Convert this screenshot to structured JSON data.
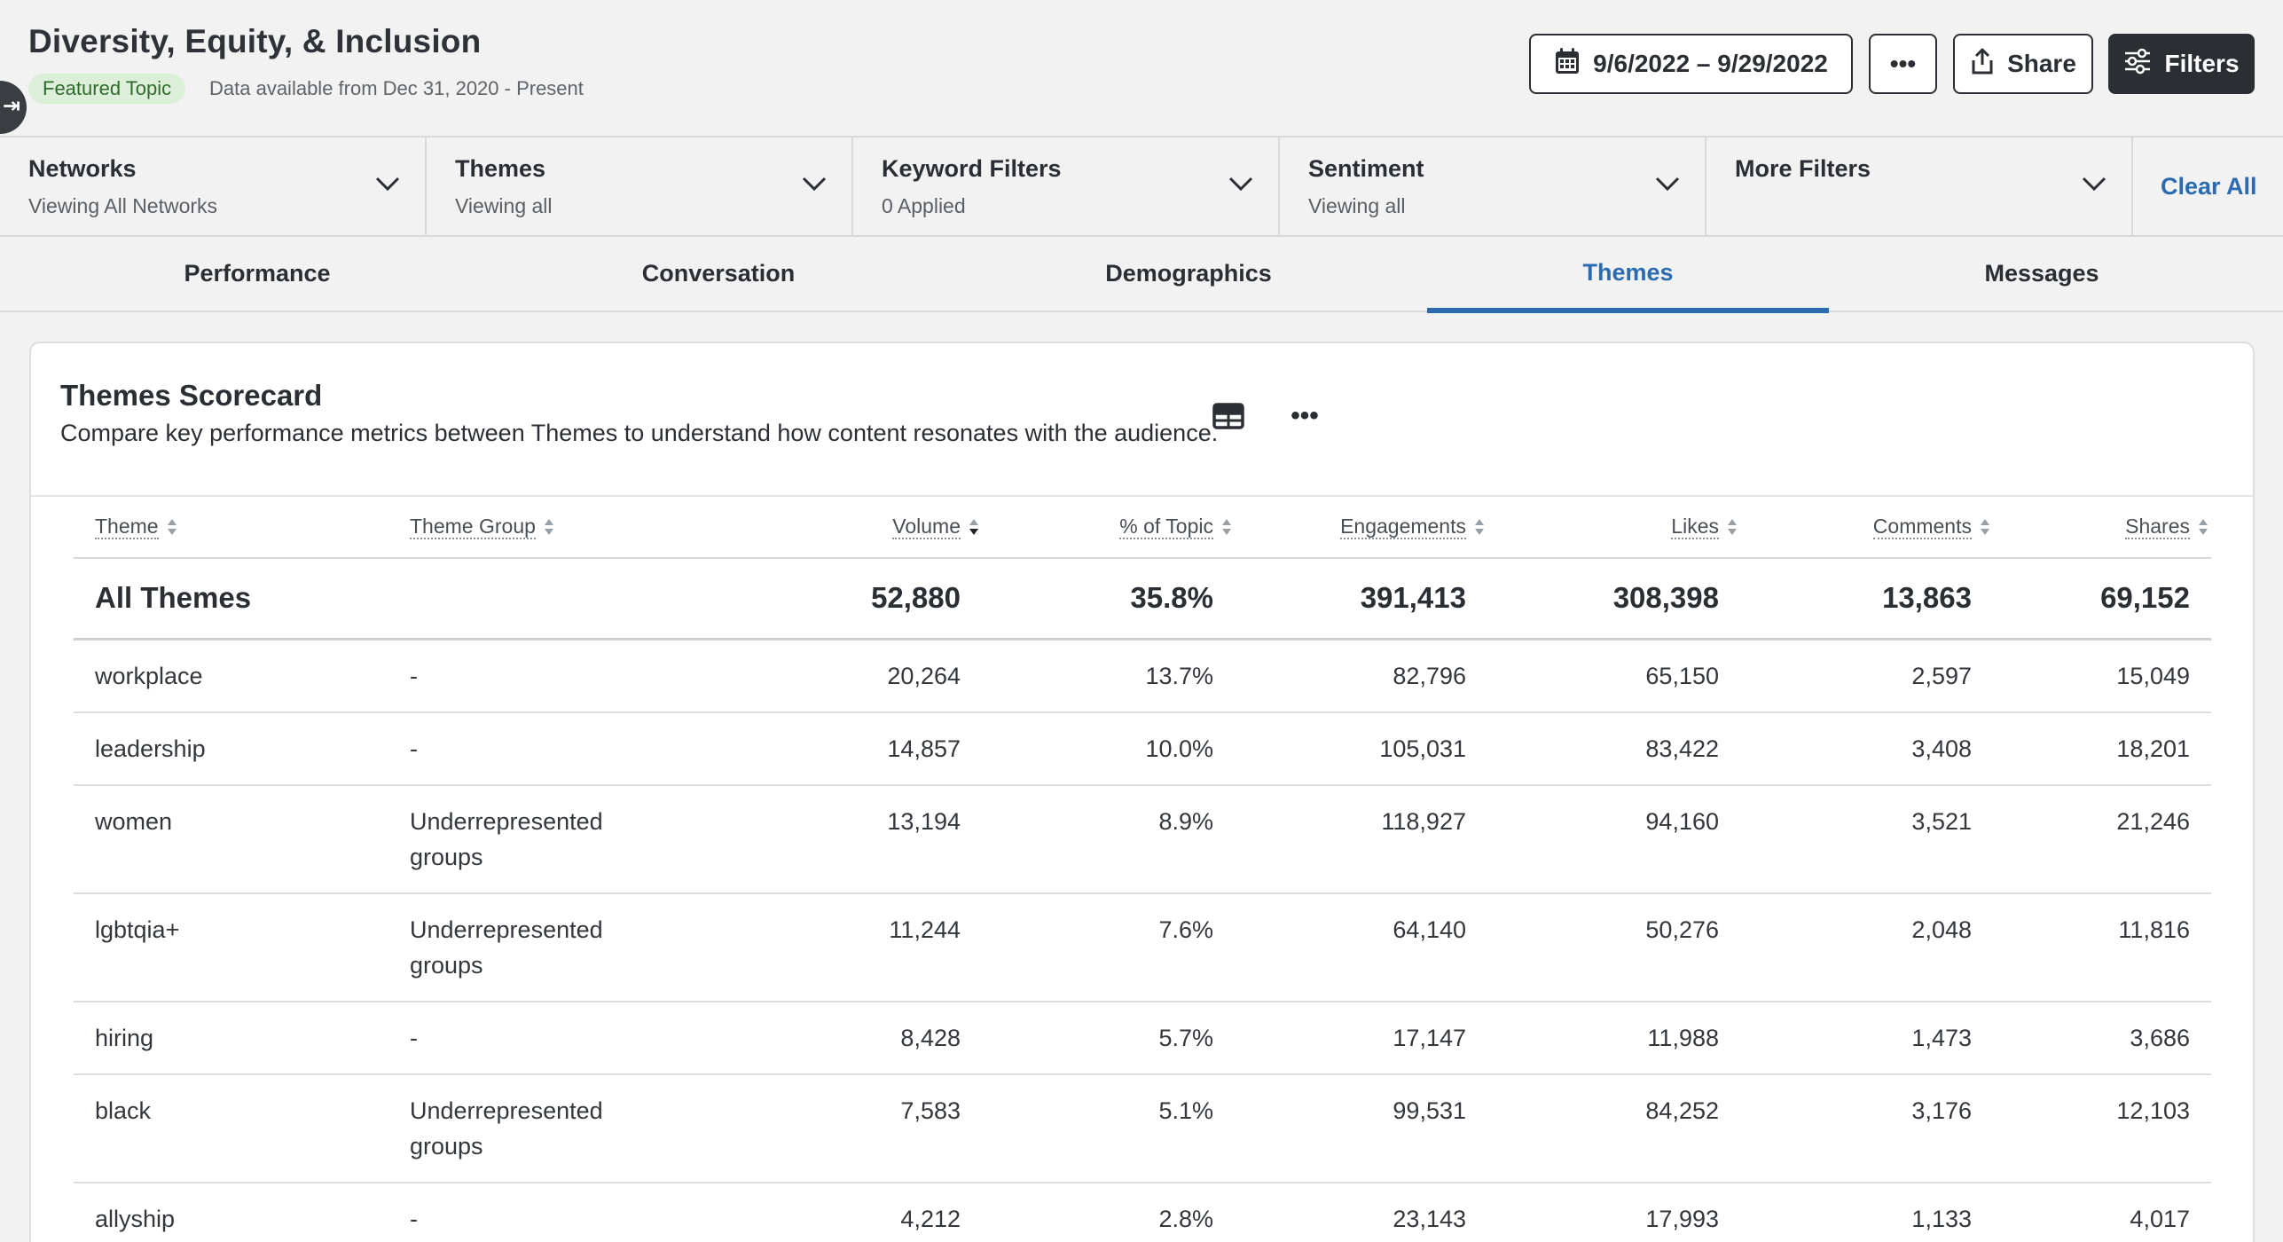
{
  "header": {
    "title": "Diversity, Equity, & Inclusion",
    "badge": "Featured Topic",
    "data_available": "Data available from Dec 31, 2020 - Present",
    "date_range": "9/6/2022 – 9/29/2022",
    "more_label": "•••",
    "share_label": "Share",
    "filters_label": "Filters"
  },
  "filters": [
    {
      "title": "Networks",
      "subtitle": "Viewing All Networks"
    },
    {
      "title": "Themes",
      "subtitle": "Viewing all"
    },
    {
      "title": "Keyword Filters",
      "subtitle": "0 Applied"
    },
    {
      "title": "Sentiment",
      "subtitle": "Viewing all"
    },
    {
      "title": "More Filters",
      "subtitle": ""
    }
  ],
  "clear_all": "Clear All",
  "tabs": [
    {
      "label": "Performance"
    },
    {
      "label": "Conversation"
    },
    {
      "label": "Demographics"
    },
    {
      "label": "Themes",
      "active": true
    },
    {
      "label": "Messages"
    }
  ],
  "card": {
    "title": "Themes Scorecard",
    "description": "Compare key performance metrics between Themes to understand how content resonates with the audience.",
    "more_label": "•••"
  },
  "table": {
    "columns": [
      "Theme",
      "Theme Group",
      "Volume",
      "% of Topic",
      "Engagements",
      "Likes",
      "Comments",
      "Shares"
    ],
    "sorted_column": "Volume",
    "total": {
      "theme": "All Themes",
      "group": "",
      "volume": "52,880",
      "pct": "35.8%",
      "engagements": "391,413",
      "likes": "308,398",
      "comments": "13,863",
      "shares": "69,152"
    },
    "rows": [
      {
        "theme": "workplace",
        "group": "-",
        "volume": "20,264",
        "pct": "13.7%",
        "engagements": "82,796",
        "likes": "65,150",
        "comments": "2,597",
        "shares": "15,049"
      },
      {
        "theme": "leadership",
        "group": "-",
        "volume": "14,857",
        "pct": "10.0%",
        "engagements": "105,031",
        "likes": "83,422",
        "comments": "3,408",
        "shares": "18,201"
      },
      {
        "theme": "women",
        "group": "Underrepresented groups",
        "volume": "13,194",
        "pct": "8.9%",
        "engagements": "118,927",
        "likes": "94,160",
        "comments": "3,521",
        "shares": "21,246"
      },
      {
        "theme": "lgbtqia+",
        "group": "Underrepresented groups",
        "volume": "11,244",
        "pct": "7.6%",
        "engagements": "64,140",
        "likes": "50,276",
        "comments": "2,048",
        "shares": "11,816"
      },
      {
        "theme": "hiring",
        "group": "-",
        "volume": "8,428",
        "pct": "5.7%",
        "engagements": "17,147",
        "likes": "11,988",
        "comments": "1,473",
        "shares": "3,686"
      },
      {
        "theme": "black",
        "group": "Underrepresented groups",
        "volume": "7,583",
        "pct": "5.1%",
        "engagements": "99,531",
        "likes": "84,252",
        "comments": "3,176",
        "shares": "12,103"
      },
      {
        "theme": "allyship",
        "group": "-",
        "volume": "4,212",
        "pct": "2.8%",
        "engagements": "23,143",
        "likes": "17,993",
        "comments": "1,133",
        "shares": "4,017"
      }
    ]
  },
  "colors": {
    "accent": "#2b6cb0",
    "badge_bg": "#dcefd8",
    "badge_text": "#2f6b2c",
    "dark_button": "#2b2f33"
  }
}
